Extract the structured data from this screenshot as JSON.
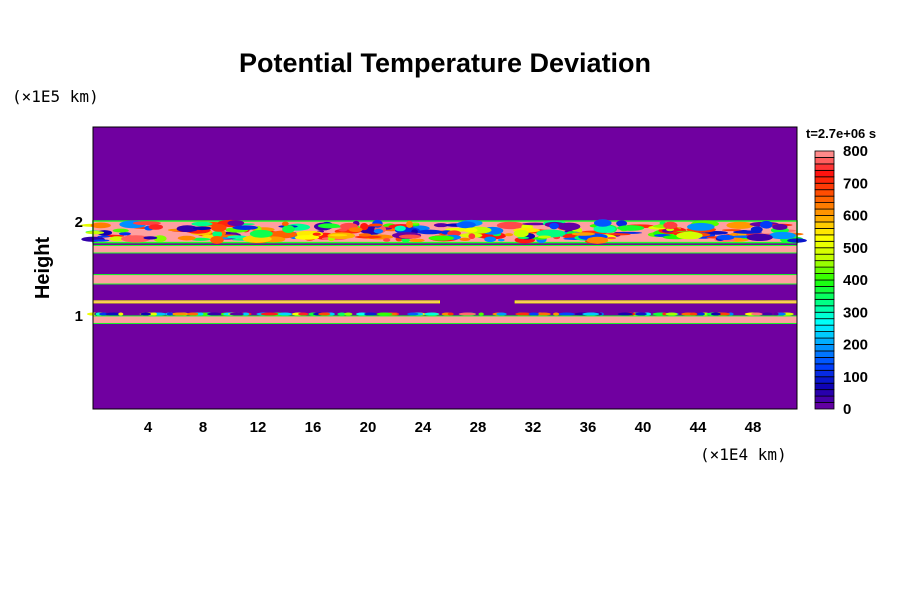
{
  "chart_data": {
    "type": "heatmap",
    "title": "Potential Temperature Deviation",
    "xlabel": "(×1E4 km)",
    "ylabel": "Height",
    "yunit": "(×1E5 km)",
    "time_label": "t=2.7e+06 s",
    "xlim": [
      0,
      51.2
    ],
    "ylim": [
      0,
      3
    ],
    "xticks": [
      4,
      8,
      12,
      16,
      20,
      24,
      28,
      32,
      36,
      40,
      44,
      48
    ],
    "yticks": [
      1,
      2
    ],
    "background_value": 0,
    "colorbar": {
      "min": 0,
      "max": 800,
      "step": 20,
      "ticks": [
        0,
        100,
        200,
        300,
        400,
        500,
        600,
        700,
        800
      ],
      "color_stops": [
        "#7000a0",
        "#1000b0",
        "#0040ff",
        "#00a0ff",
        "#00ffff",
        "#00ff80",
        "#20ff00",
        "#c0ff00",
        "#ffff00",
        "#ffa000",
        "#ff5000",
        "#ff1010",
        "#ffa0a0"
      ]
    },
    "features": [
      {
        "name": "turbulent-layer",
        "y": [
          1.77,
          2.0
        ],
        "x": [
          0,
          51.2
        ],
        "value": "mixed 0-800"
      },
      {
        "name": "upper-band",
        "y": [
          1.66,
          1.74
        ],
        "x": [
          0,
          51.2
        ],
        "value": 800
      },
      {
        "name": "middle-band",
        "y": [
          1.33,
          1.43
        ],
        "x": [
          0,
          51.2
        ],
        "value": 800
      },
      {
        "name": "thin-line-left",
        "y": [
          1.13,
          1.15
        ],
        "x": [
          0,
          25.2
        ],
        "value": 800
      },
      {
        "name": "thin-line-right",
        "y": [
          1.13,
          1.15
        ],
        "x": [
          30.7,
          51.2
        ],
        "value": 800
      },
      {
        "name": "spot-row",
        "y": [
          0.99,
          1.03
        ],
        "x": [
          0,
          51.2
        ],
        "value": "mixed 0-800"
      },
      {
        "name": "lower-band",
        "y": [
          0.91,
          0.99
        ],
        "x": [
          0,
          51.2
        ],
        "value": 800
      }
    ]
  }
}
